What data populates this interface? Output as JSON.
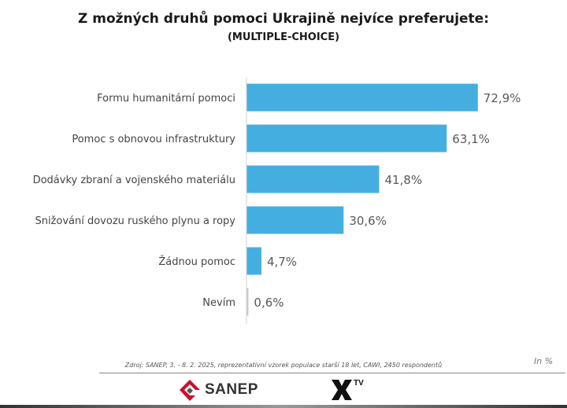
{
  "chart_data": {
    "type": "bar",
    "orientation": "horizontal",
    "title": "Z možných druhů pomoci Ukrajině nejvíce preferujete:",
    "subtitle": "(MULTIPLE-CHOICE)",
    "categories": [
      "Formu humanitární pomoci",
      "Pomoc s obnovou infrastruktury",
      "Dodávky zbraní a vojenského materiálu",
      "Snižování dovozu ruského plynu a ropy",
      "Žádnou pomoc",
      "Nevím"
    ],
    "values": [
      72.9,
      63.1,
      41.8,
      30.6,
      4.7,
      0.6
    ],
    "value_labels": [
      "72,9%",
      "63,1%",
      "41,8%",
      "30,6%",
      "4,7%",
      "0,6%"
    ],
    "bar_colors": [
      "#45aee0",
      "#45aee0",
      "#45aee0",
      "#45aee0",
      "#45aee0",
      "#c8c8c8"
    ],
    "xlim": [
      0,
      100
    ],
    "unit_note": "In %",
    "grid": false,
    "legend": "none"
  },
  "footer": {
    "source": "Zdroj: SANEP, 3. - 8. 2. 2025, reprezentativní vzorek populace starší 18 let, CAWI, 2450 respondentů",
    "unit": "In %",
    "logos": {
      "sanep": "SANEP",
      "xtv": "TV"
    }
  },
  "colors": {
    "bar": "#45aee0",
    "minor_bar": "#c8c8c8",
    "logo_red": "#c8102e"
  }
}
